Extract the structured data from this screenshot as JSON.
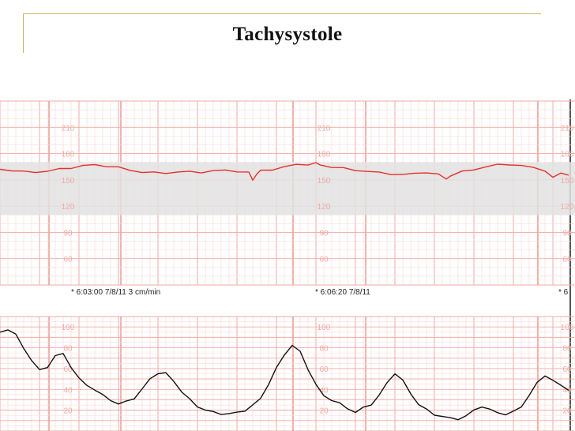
{
  "slide": {
    "title": "Tachysystole"
  },
  "colors": {
    "grid_major": "#f2aaa4",
    "grid_minor": "#f9dcd9",
    "fhr_trace": "#e8302a",
    "toco_trace": "#111111",
    "band": "#e2e2e2",
    "frame": "#c8b35a"
  },
  "chart_data": [
    {
      "type": "line",
      "name": "fetal-heart-rate",
      "title": "",
      "ylim": [
        30,
        240
      ],
      "yticks": [
        60,
        90,
        120,
        150,
        180,
        210
      ],
      "band": [
        110,
        170
      ],
      "series": [
        {
          "x": [
            0,
            15,
            30,
            45,
            60,
            75,
            90,
            105,
            120,
            135,
            150,
            165,
            180,
            195,
            210,
            225,
            240,
            255,
            270,
            285,
            300,
            315,
            320,
            325,
            330,
            345,
            360,
            375,
            390,
            400,
            405,
            420,
            435,
            450,
            465,
            480,
            495,
            510,
            525,
            540,
            555,
            565,
            570,
            585,
            600,
            615,
            630,
            645,
            660,
            675,
            690,
            700,
            710,
            720
          ],
          "values": [
            162,
            161,
            159,
            159,
            160,
            162,
            164,
            166,
            167,
            166,
            164,
            161,
            159,
            158,
            158,
            159,
            159,
            159,
            160,
            161,
            160,
            158,
            150,
            157,
            160,
            162,
            165,
            167,
            168,
            169,
            167,
            165,
            163,
            161,
            160,
            158,
            157,
            156,
            157,
            159,
            156,
            151,
            155,
            159,
            162,
            165,
            167,
            168,
            166,
            164,
            161,
            152,
            158,
            156
          ]
        }
      ]
    },
    {
      "type": "line",
      "name": "uterine-activity",
      "title": "",
      "ylim": [
        0,
        110
      ],
      "yticks": [
        20,
        40,
        60,
        80,
        100
      ],
      "series": [
        {
          "x": [
            0,
            10,
            20,
            30,
            40,
            50,
            60,
            70,
            80,
            90,
            100,
            110,
            120,
            130,
            140,
            150,
            160,
            170,
            180,
            190,
            200,
            210,
            220,
            230,
            240,
            250,
            260,
            270,
            280,
            290,
            300,
            310,
            320,
            330,
            340,
            350,
            360,
            370,
            380,
            390,
            400,
            410,
            420,
            430,
            440,
            450,
            460,
            470,
            480,
            490,
            500,
            510,
            520,
            530,
            540,
            550,
            560,
            570,
            580,
            590,
            600,
            610,
            620,
            630,
            640,
            650,
            660,
            670,
            680,
            690,
            700,
            710,
            720
          ],
          "values": [
            95,
            98,
            92,
            80,
            68,
            58,
            62,
            72,
            74,
            62,
            50,
            44,
            40,
            34,
            30,
            26,
            28,
            32,
            40,
            50,
            56,
            55,
            48,
            38,
            30,
            24,
            20,
            18,
            17,
            16,
            18,
            20,
            24,
            32,
            45,
            60,
            74,
            82,
            76,
            60,
            44,
            34,
            30,
            26,
            22,
            18,
            22,
            26,
            34,
            46,
            56,
            48,
            36,
            26,
            20,
            16,
            14,
            12,
            12,
            14,
            20,
            24,
            20,
            18,
            16,
            18,
            24,
            34,
            46,
            54,
            48,
            44,
            40
          ]
        }
      ]
    }
  ],
  "timestamps": [
    {
      "text": "* 6:03:00 7/8/11   3 cm/min"
    },
    {
      "text": "* 6:06:20 7/8/11"
    },
    {
      "text": "* 6"
    }
  ]
}
